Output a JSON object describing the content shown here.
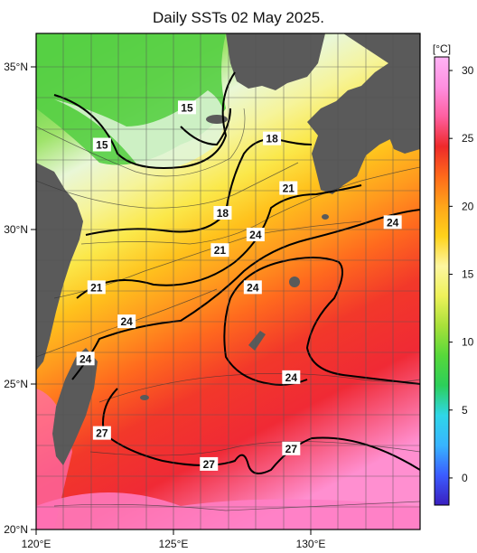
{
  "title": "Daily SSTs 02 May 2025.",
  "colorbar": {
    "unit": "[°C]",
    "ticks": [
      "30",
      "25",
      "20",
      "15",
      "10",
      "5",
      "0"
    ],
    "range": [
      -2,
      31
    ],
    "gradient": [
      "#3a1fbf",
      "#3b5cff",
      "#38b4ff",
      "#2fd6e8",
      "#2ccf5a",
      "#56d83a",
      "#a8e03a",
      "#eef25a",
      "#fdf6a0",
      "#ffd21a",
      "#ffa51a",
      "#ff6a1a",
      "#ee2a2a",
      "#ff5fa0",
      "#ff8fe0",
      "#ffb3f5"
    ]
  },
  "axes": {
    "lon_labels": [
      "120°E",
      "125°E",
      "130°E"
    ],
    "lat_labels": [
      "35°N",
      "30°N",
      "25°N",
      "20°N"
    ],
    "lon_range": [
      120,
      134
    ],
    "lat_range": [
      20,
      36
    ]
  },
  "contour_labels": [
    {
      "text": "15",
      "lon": 125.5,
      "lat": 33.6
    },
    {
      "text": "15",
      "lon": 122.4,
      "lat": 32.4
    },
    {
      "text": "18",
      "lon": 128.6,
      "lat": 32.6
    },
    {
      "text": "21",
      "lon": 129.2,
      "lat": 31.0
    },
    {
      "text": "18",
      "lon": 126.8,
      "lat": 30.2
    },
    {
      "text": "24",
      "lon": 133.0,
      "lat": 29.9
    },
    {
      "text": "24",
      "lon": 128.0,
      "lat": 29.5
    },
    {
      "text": "21",
      "lon": 126.7,
      "lat": 29.0
    },
    {
      "text": "21",
      "lon": 122.2,
      "lat": 27.8
    },
    {
      "text": "24",
      "lon": 127.9,
      "lat": 27.8
    },
    {
      "text": "24",
      "lon": 123.3,
      "lat": 26.7
    },
    {
      "text": "24",
      "lon": 121.8,
      "lat": 25.5
    },
    {
      "text": "24",
      "lon": 129.3,
      "lat": 24.9
    },
    {
      "text": "27",
      "lon": 122.4,
      "lat": 23.1
    },
    {
      "text": "27",
      "lon": 129.3,
      "lat": 22.6
    },
    {
      "text": "27",
      "lon": 126.3,
      "lat": 22.1
    }
  ],
  "colors": {
    "land": "#5a5a5a",
    "grid": "#666666",
    "contour_bold": "#000000"
  }
}
